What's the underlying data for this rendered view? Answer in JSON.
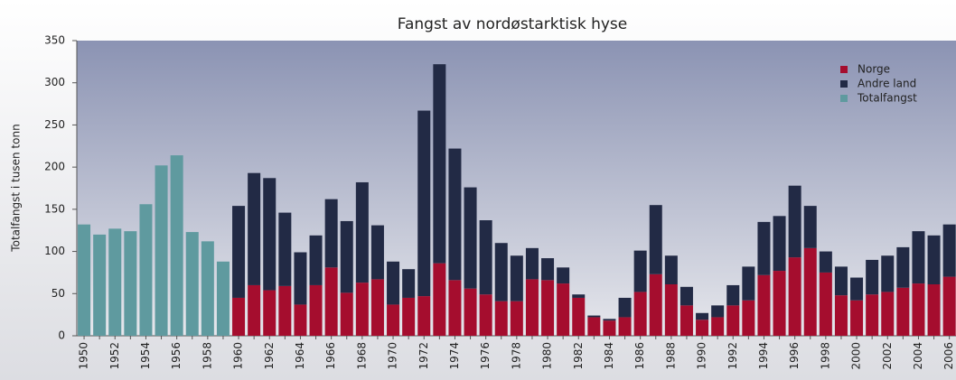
{
  "chart_data": {
    "type": "bar",
    "stacked": true,
    "title": "Fangst av nordøstarktisk hyse",
    "y_label": "Totalfangst i tusen tonn",
    "categories": [
      "1950",
      null,
      "1952",
      null,
      "1954",
      null,
      "1956",
      null,
      "1958",
      null,
      "1960",
      null,
      "1962",
      null,
      "1964",
      null,
      "1966",
      null,
      "1968",
      null,
      "1970",
      null,
      "1972",
      null,
      "1974",
      null,
      "1976",
      null,
      "1978",
      null,
      "1980",
      null,
      "1982",
      null,
      "1984",
      null,
      "1986",
      null,
      "1988",
      null,
      "1990",
      null,
      "1992",
      null,
      "1994",
      null,
      "1996",
      null,
      "1998",
      null,
      "2000",
      null,
      "2002",
      null,
      "2004",
      null,
      "2006"
    ],
    "series": [
      {
        "name": "Norge",
        "color": "#a50d2e",
        "values": [
          null,
          null,
          null,
          null,
          null,
          null,
          null,
          null,
          null,
          null,
          45,
          60,
          54,
          59,
          37,
          60,
          81,
          51,
          63,
          67,
          37,
          45,
          47,
          86,
          66,
          56,
          49,
          41,
          41,
          67,
          66,
          62,
          45,
          22,
          18,
          22,
          52,
          73,
          61,
          36,
          19,
          22,
          36,
          42,
          72,
          77,
          93,
          104,
          75,
          48,
          42,
          49,
          52,
          57,
          62,
          61,
          70
        ]
      },
      {
        "name": "Andre land",
        "color": "#222a45",
        "values": [
          null,
          null,
          null,
          null,
          null,
          null,
          null,
          null,
          null,
          null,
          109,
          133,
          133,
          87,
          62,
          59,
          81,
          85,
          119,
          64,
          51,
          34,
          220,
          236,
          156,
          120,
          88,
          69,
          54,
          37,
          26,
          19,
          4,
          2,
          2,
          23,
          49,
          82,
          34,
          22,
          8,
          14,
          24,
          40,
          63,
          65,
          85,
          50,
          25,
          34,
          27,
          41,
          43,
          48,
          62,
          58,
          62
        ]
      },
      {
        "name": "Totalfangst",
        "color": "#5f9a9f",
        "values": [
          132,
          120,
          127,
          124,
          156,
          202,
          214,
          123,
          112,
          88,
          null,
          null,
          null,
          null,
          null,
          null,
          null,
          null,
          null,
          null,
          null,
          null,
          null,
          null,
          null,
          null,
          null,
          null,
          null,
          null,
          null,
          null,
          null,
          null,
          null,
          null,
          null,
          null,
          null,
          null,
          null,
          null,
          null,
          null,
          null,
          null,
          null,
          null,
          null,
          null,
          null,
          null,
          null,
          null,
          null,
          null,
          null
        ]
      }
    ],
    "ylim": [
      0,
      350
    ],
    "yticks": [
      0,
      50,
      100,
      150,
      200,
      250,
      300,
      350
    ],
    "legend": "top-right"
  }
}
